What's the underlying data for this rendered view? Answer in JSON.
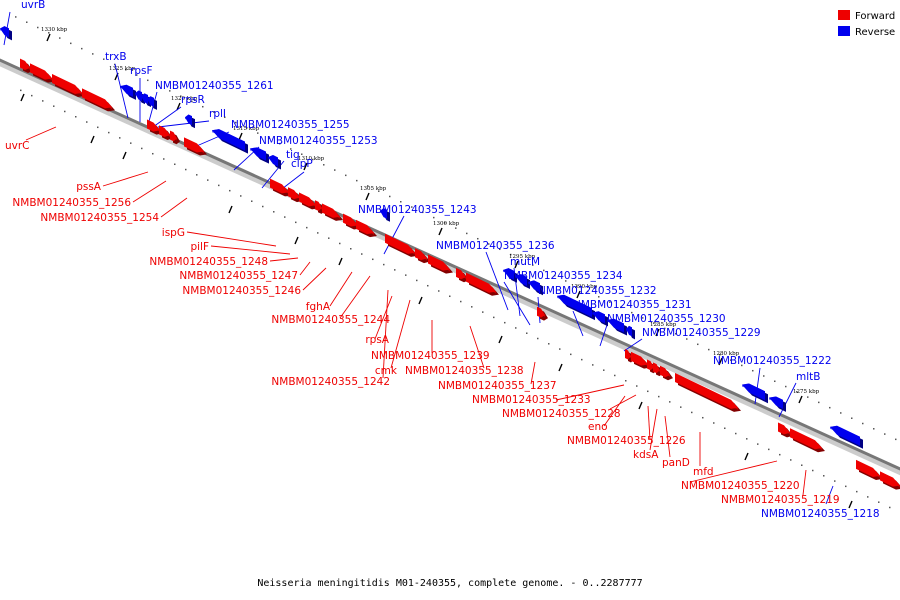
{
  "title": "Neisseria meningitidis M01-240355, complete genome. - 0..2287777",
  "colors": {
    "forward": "#ee0000",
    "reverse": "#0000ee",
    "backbone": "#777777"
  },
  "legend": [
    {
      "label": "Forward",
      "strand": "forward"
    },
    {
      "label": "Reverse",
      "strand": "reverse"
    }
  ],
  "ticks": [
    "1330 kbp",
    "1325 kbp",
    "1320 kbp",
    "1315 kbp",
    "1310 kbp",
    "1305 kbp",
    "1300 kbp",
    "1295 kbp",
    "1290 kbp",
    "1285 kbp",
    "1280 kbp",
    "1275 kbp"
  ],
  "reverse_labels": [
    "uvrB",
    "trxB",
    "rpsF",
    "NMBM01240355_1261",
    "rpsR",
    "rplI",
    "NMBM01240355_1255",
    "NMBM01240355_1253",
    "tig",
    "clpP",
    "NMBM01240355_1243",
    "NMBM01240355_1236",
    "mutM",
    "NMBM01240355_1234",
    "NMBM01240355_1232",
    "NMBM01240355_1231",
    "NMBM01240355_1230",
    "NMBM01240355_1229",
    "NMBM01240355_1222",
    "mltB",
    "NMBM01240355_1218"
  ],
  "forward_labels": [
    "uvrC",
    "pssA",
    "NMBM01240355_1256",
    "NMBM01240355_1254",
    "ispG",
    "pilF",
    "NMBM01240355_1248",
    "NMBM01240355_1247",
    "NMBM01240355_1246",
    "fghA",
    "NMBM01240355_1244",
    "rpsA",
    "cmk",
    "NMBM01240355_1242",
    "NMBM01240355_1239",
    "NMBM01240355_1238",
    "NMBM01240355_1237",
    "NMBM01240355_1233",
    "NMBM01240355_1228",
    "eno",
    "NMBM01240355_1226",
    "kdsA",
    "panD",
    "mfd",
    "NMBM01240355_1220",
    "NMBM01240355_1219"
  ]
}
